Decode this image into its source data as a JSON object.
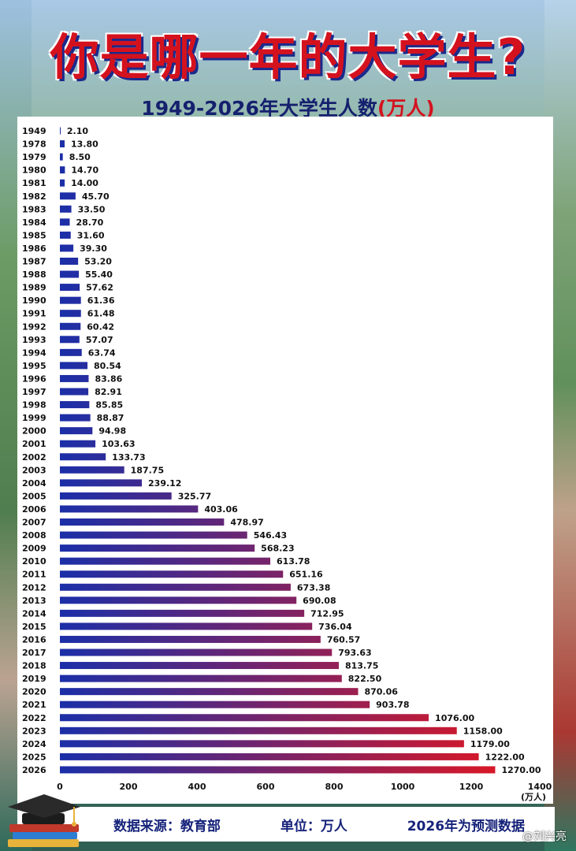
{
  "title": "你是哪一年的大学生?",
  "subtitle_main": "1949-2026年大学生人数",
  "subtitle_unit": "(万人)",
  "footer": {
    "source": "数据来源：教育部",
    "unit": "单位：万人",
    "note": "2026年为预测数据"
  },
  "watermark": "@刘兴亮",
  "chart_data": {
    "type": "bar",
    "orientation": "horizontal",
    "categories": [
      "1949",
      "1978",
      "1979",
      "1980",
      "1981",
      "1982",
      "1983",
      "1984",
      "1985",
      "1986",
      "1987",
      "1988",
      "1989",
      "1990",
      "1991",
      "1992",
      "1993",
      "1994",
      "1995",
      "1996",
      "1997",
      "1998",
      "1999",
      "2000",
      "2001",
      "2002",
      "2003",
      "2004",
      "2005",
      "2006",
      "2007",
      "2008",
      "2009",
      "2010",
      "2011",
      "2012",
      "2013",
      "2014",
      "2015",
      "2016",
      "2017",
      "2018",
      "2019",
      "2020",
      "2021",
      "2022",
      "2023",
      "2024",
      "2025",
      "2026"
    ],
    "values": [
      2.1,
      13.8,
      8.5,
      14.7,
      14.0,
      45.7,
      33.5,
      28.7,
      31.6,
      39.3,
      53.2,
      55.4,
      57.62,
      61.36,
      61.48,
      60.42,
      57.07,
      63.74,
      80.54,
      83.86,
      82.91,
      85.85,
      88.87,
      94.98,
      103.63,
      133.73,
      187.75,
      239.12,
      325.77,
      403.06,
      478.97,
      546.43,
      568.23,
      613.78,
      651.16,
      673.38,
      690.08,
      712.95,
      736.04,
      760.57,
      793.63,
      813.75,
      822.5,
      870.06,
      903.78,
      1076.0,
      1158.0,
      1179.0,
      1222.0,
      1270.0
    ],
    "value_labels": [
      "2.10",
      "13.80",
      "8.50",
      "14.70",
      "14.00",
      "45.70",
      "33.50",
      "28.70",
      "31.60",
      "39.30",
      "53.20",
      "55.40",
      "57.62",
      "61.36",
      "61.48",
      "60.42",
      "57.07",
      "63.74",
      "80.54",
      "83.86",
      "82.91",
      "85.85",
      "88.87",
      "94.98",
      "103.63",
      "133.73",
      "187.75",
      "239.12",
      "325.77",
      "403.06",
      "478.97",
      "546.43",
      "568.23",
      "613.78",
      "651.16",
      "673.38",
      "690.08",
      "712.95",
      "736.04",
      "760.57",
      "793.63",
      "813.75",
      "822.50",
      "870.06",
      "903.78",
      "1076.00",
      "1158.00",
      "1179.00",
      "1222.00",
      "1270.00"
    ],
    "xlim": [
      0,
      1400
    ],
    "xticks": [
      "0",
      "200",
      "400",
      "600",
      "800",
      "1000",
      "1200",
      "1400"
    ],
    "xunit": "(万人)",
    "colors": {
      "bar_start": "#1b2fa8",
      "bar_end": "#e8161c"
    },
    "grid": false
  }
}
